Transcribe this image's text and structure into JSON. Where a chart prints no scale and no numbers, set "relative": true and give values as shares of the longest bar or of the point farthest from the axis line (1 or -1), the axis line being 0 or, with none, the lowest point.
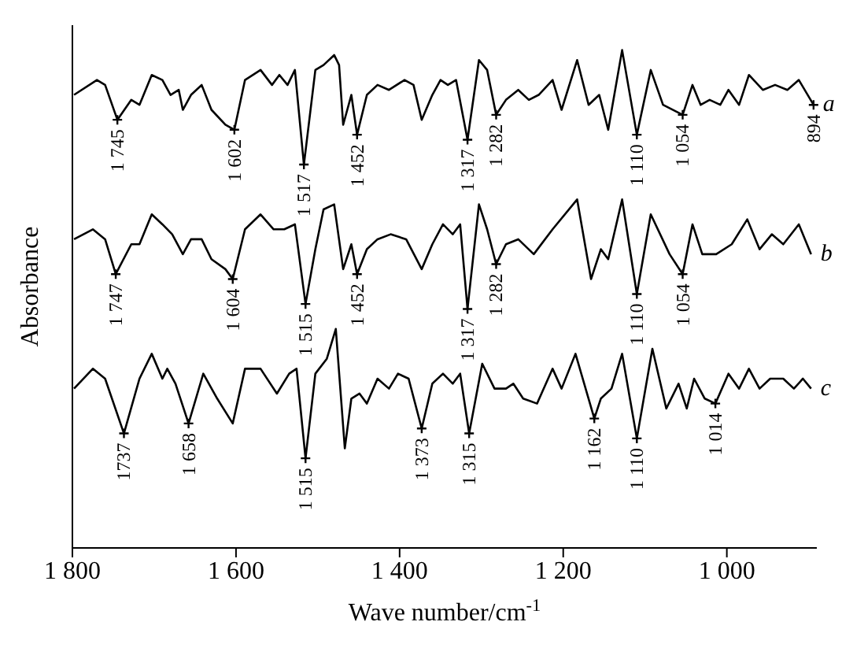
{
  "chart_data": {
    "type": "line",
    "relative": true,
    "xlabel": "Wave number/cm$^{-1}$",
    "ylabel": "Absorbance",
    "xlim": [
      1800,
      890
    ],
    "xticks": [
      {
        "value": 1800,
        "label": "1 800"
      },
      {
        "value": 1600,
        "label": "1 600"
      },
      {
        "value": 1400,
        "label": "1 400"
      },
      {
        "value": 1200,
        "label": "1 200"
      },
      {
        "value": 1000,
        "label": "1 000"
      }
    ],
    "grid": false,
    "legend": false,
    "marker": "none",
    "line_style": "solid",
    "series": [
      {
        "name": "a",
        "color": "#000000",
        "x": [
          1798,
          1770,
          1760,
          1745,
          1728,
          1718,
          1703,
          1690,
          1680,
          1670,
          1665,
          1655,
          1642,
          1630,
          1613,
          1602,
          1589,
          1570,
          1556,
          1547,
          1537,
          1528,
          1517,
          1503,
          1493,
          1480,
          1474,
          1469,
          1459,
          1452,
          1440,
          1427,
          1413,
          1394,
          1383,
          1373,
          1360,
          1350,
          1341,
          1331,
          1317,
          1303,
          1293,
          1282,
          1270,
          1255,
          1242,
          1230,
          1213,
          1202,
          1183,
          1169,
          1156,
          1145,
          1128,
          1110,
          1093,
          1078,
          1054,
          1042,
          1032,
          1021,
          1008,
          998,
          985,
          973,
          956,
          941,
          926,
          912,
          894
        ],
        "values": [
          0.91,
          0.94,
          0.93,
          0.86,
          0.9,
          0.89,
          0.95,
          0.94,
          0.91,
          0.92,
          0.88,
          0.91,
          0.93,
          0.88,
          0.85,
          0.84,
          0.94,
          0.96,
          0.93,
          0.95,
          0.93,
          0.96,
          0.77,
          0.96,
          0.97,
          0.99,
          0.97,
          0.85,
          0.91,
          0.83,
          0.91,
          0.93,
          0.92,
          0.94,
          0.93,
          0.86,
          0.91,
          0.94,
          0.93,
          0.94,
          0.82,
          0.98,
          0.96,
          0.87,
          0.9,
          0.92,
          0.9,
          0.91,
          0.94,
          0.88,
          0.98,
          0.89,
          0.91,
          0.84,
          1.0,
          0.83,
          0.96,
          0.89,
          0.87,
          0.93,
          0.89,
          0.9,
          0.89,
          0.92,
          0.89,
          0.95,
          0.92,
          0.93,
          0.92,
          0.94,
          0.89
        ]
      },
      {
        "name": "b",
        "color": "#000000",
        "x": [
          1798,
          1775,
          1760,
          1747,
          1728,
          1718,
          1703,
          1690,
          1678,
          1665,
          1655,
          1642,
          1630,
          1613,
          1604,
          1589,
          1570,
          1554,
          1541,
          1528,
          1515,
          1503,
          1493,
          1480,
          1469,
          1459,
          1452,
          1440,
          1427,
          1411,
          1392,
          1373,
          1360,
          1347,
          1335,
          1326,
          1317,
          1303,
          1293,
          1282,
          1270,
          1255,
          1236,
          1213,
          1183,
          1166,
          1154,
          1145,
          1128,
          1110,
          1093,
          1070,
          1054,
          1042,
          1030,
          1013,
          994,
          975,
          960,
          945,
          931,
          912,
          897
        ],
        "values": [
          0.62,
          0.64,
          0.62,
          0.55,
          0.61,
          0.61,
          0.67,
          0.65,
          0.63,
          0.59,
          0.62,
          0.62,
          0.58,
          0.56,
          0.54,
          0.64,
          0.67,
          0.64,
          0.64,
          0.65,
          0.49,
          0.6,
          0.68,
          0.69,
          0.56,
          0.61,
          0.55,
          0.6,
          0.62,
          0.63,
          0.62,
          0.56,
          0.61,
          0.65,
          0.63,
          0.65,
          0.48,
          0.69,
          0.64,
          0.57,
          0.61,
          0.62,
          0.59,
          0.64,
          0.7,
          0.54,
          0.6,
          0.58,
          0.7,
          0.51,
          0.67,
          0.59,
          0.55,
          0.65,
          0.59,
          0.59,
          0.61,
          0.66,
          0.6,
          0.63,
          0.61,
          0.65,
          0.59
        ]
      },
      {
        "name": "c",
        "color": "#000000",
        "x": [
          1798,
          1775,
          1760,
          1737,
          1718,
          1703,
          1690,
          1684,
          1674,
          1658,
          1640,
          1623,
          1604,
          1589,
          1570,
          1550,
          1535,
          1526,
          1515,
          1503,
          1489,
          1478,
          1467,
          1459,
          1449,
          1440,
          1427,
          1413,
          1402,
          1389,
          1373,
          1360,
          1347,
          1335,
          1326,
          1315,
          1299,
          1284,
          1270,
          1261,
          1249,
          1232,
          1213,
          1202,
          1185,
          1162,
          1154,
          1141,
          1128,
          1110,
          1091,
          1074,
          1059,
          1049,
          1040,
          1027,
          1014,
          998,
          985,
          973,
          960,
          947,
          931,
          918,
          907,
          897
        ],
        "values": [
          0.32,
          0.36,
          0.34,
          0.23,
          0.34,
          0.39,
          0.34,
          0.36,
          0.33,
          0.25,
          0.35,
          0.3,
          0.25,
          0.36,
          0.36,
          0.31,
          0.35,
          0.36,
          0.18,
          0.35,
          0.38,
          0.44,
          0.2,
          0.3,
          0.31,
          0.29,
          0.34,
          0.32,
          0.35,
          0.34,
          0.24,
          0.33,
          0.35,
          0.33,
          0.35,
          0.23,
          0.37,
          0.32,
          0.32,
          0.33,
          0.3,
          0.29,
          0.36,
          0.32,
          0.39,
          0.26,
          0.3,
          0.32,
          0.39,
          0.22,
          0.4,
          0.28,
          0.33,
          0.28,
          0.34,
          0.3,
          0.29,
          0.35,
          0.32,
          0.36,
          0.32,
          0.34,
          0.34,
          0.32,
          0.34,
          0.32
        ]
      }
    ],
    "annotations": [
      {
        "text": "1 745",
        "x": 1745,
        "y": 0.86
      },
      {
        "text": "1 602",
        "x": 1602,
        "y": 0.84
      },
      {
        "text": "1 517",
        "x": 1517,
        "y": 0.77
      },
      {
        "text": "1 452",
        "x": 1452,
        "y": 0.83
      },
      {
        "text": "1 317",
        "x": 1317,
        "y": 0.82
      },
      {
        "text": "1 282",
        "x": 1282,
        "y": 0.87
      },
      {
        "text": "1 110",
        "x": 1110,
        "y": 0.83
      },
      {
        "text": "1 054",
        "x": 1054,
        "y": 0.87
      },
      {
        "text": "894",
        "x": 894,
        "y": 0.89
      },
      {
        "text": "1 747",
        "x": 1747,
        "y": 0.55
      },
      {
        "text": "1 604",
        "x": 1604,
        "y": 0.54
      },
      {
        "text": "1 515",
        "x": 1515,
        "y": 0.49
      },
      {
        "text": "1 452",
        "x": 1452,
        "y": 0.55
      },
      {
        "text": "1 317",
        "x": 1317,
        "y": 0.48
      },
      {
        "text": "1 282",
        "x": 1282,
        "y": 0.57
      },
      {
        "text": "1 110",
        "x": 1110,
        "y": 0.51
      },
      {
        "text": "1 054",
        "x": 1054,
        "y": 0.55
      },
      {
        "text": "1737",
        "x": 1737,
        "y": 0.23
      },
      {
        "text": "1 658",
        "x": 1658,
        "y": 0.25
      },
      {
        "text": "1 515",
        "x": 1515,
        "y": 0.18
      },
      {
        "text": "1 373",
        "x": 1373,
        "y": 0.24
      },
      {
        "text": "1 315",
        "x": 1315,
        "y": 0.23
      },
      {
        "text": "1 162",
        "x": 1162,
        "y": 0.26
      },
      {
        "text": "1 110",
        "x": 1110,
        "y": 0.22
      },
      {
        "text": "1 014",
        "x": 1014,
        "y": 0.29
      }
    ]
  }
}
